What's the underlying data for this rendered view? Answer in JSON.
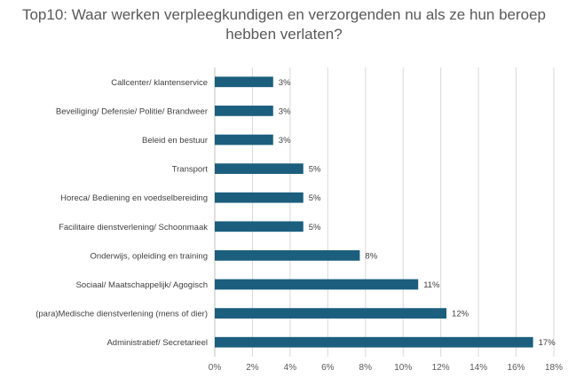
{
  "chart_data": {
    "type": "bar",
    "orientation": "horizontal",
    "title": "Top10: Waar werken verpleegkundigen en verzorgenden nu als ze hun beroep hebben verlaten?",
    "categories": [
      "Callcenter/ klantenservice",
      "Beveiliging/ Defensie/ Politie/ Brandweer",
      "Beleid en bestuur",
      "Transport",
      "Horeca/ Bediening en voedselbereiding",
      "Facilitaire dienstverlening/ Schoonmaak",
      "Onderwijs, opleiding en training",
      "Sociaal/ Maatschappelijk/ Agogisch",
      "(para)Medische dienstverlening (mens of dier)",
      "Administratief/ Secretarieel"
    ],
    "values": [
      3.1,
      3.1,
      3.1,
      4.7,
      4.7,
      4.7,
      7.7,
      10.8,
      12.3,
      16.9
    ],
    "data_labels": [
      "3%",
      "3%",
      "3%",
      "5%",
      "5%",
      "5%",
      "8%",
      "11%",
      "12%",
      "17%"
    ],
    "xlim": [
      0,
      18
    ],
    "x_ticks": [
      0,
      2,
      4,
      6,
      8,
      10,
      12,
      14,
      16,
      18
    ],
    "x_tick_labels": [
      "0%",
      "2%",
      "4%",
      "6%",
      "8%",
      "10%",
      "12%",
      "14%",
      "16%",
      "18%"
    ],
    "grid": true,
    "legend": "none",
    "colors": {
      "bar": "#1b5e7e",
      "grid": "#d9d9d9",
      "axis": "#bfbfbf"
    }
  }
}
